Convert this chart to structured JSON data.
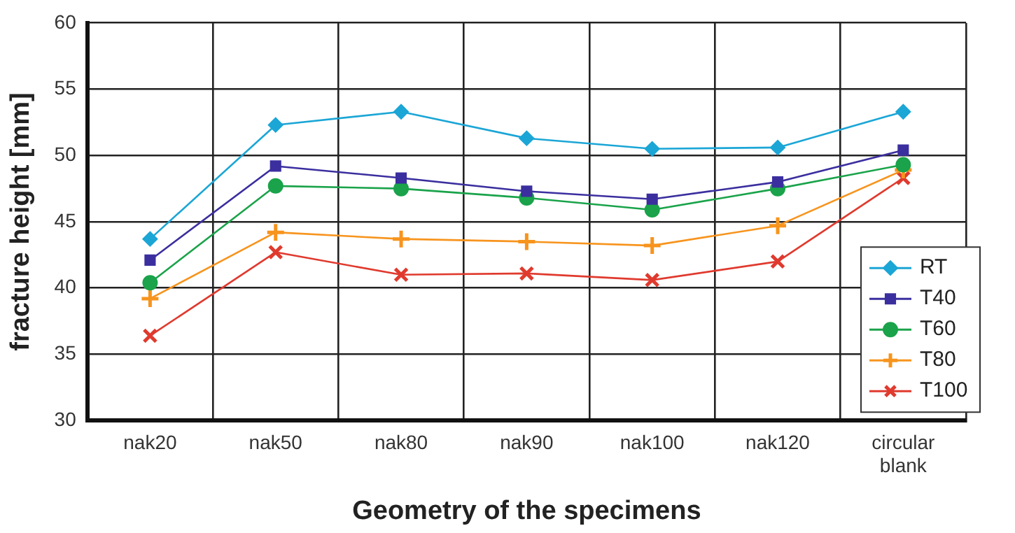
{
  "chart_data": {
    "type": "line",
    "xlabel": "Geometry of the specimens",
    "ylabel": "fracture height [mm]",
    "categories": [
      "nak20",
      "nak50",
      "nak80",
      "nak90",
      "nak100",
      "nak120",
      "circular\nblank"
    ],
    "series": [
      {
        "name": "RT",
        "color": "#1ba6d6",
        "marker": "diamond",
        "values": [
          43.7,
          52.3,
          53.3,
          51.3,
          50.5,
          50.6,
          53.3
        ]
      },
      {
        "name": "T40",
        "color": "#3b2f9f",
        "marker": "square",
        "values": [
          42.1,
          49.2,
          48.3,
          47.3,
          46.7,
          48.0,
          50.4
        ]
      },
      {
        "name": "T60",
        "color": "#1aa34a",
        "marker": "circle",
        "values": [
          40.4,
          47.7,
          47.5,
          46.8,
          45.9,
          47.5,
          49.3
        ]
      },
      {
        "name": "T80",
        "color": "#f7941d",
        "marker": "cross",
        "values": [
          39.2,
          44.2,
          43.7,
          43.5,
          43.2,
          44.7,
          48.9
        ]
      },
      {
        "name": "T100",
        "color": "#e03a2e",
        "marker": "cross",
        "values": [
          36.4,
          42.7,
          41.0,
          41.1,
          40.6,
          42.0,
          48.3
        ]
      }
    ],
    "ylim": [
      30,
      60
    ],
    "yticks": [
      30,
      35,
      40,
      45,
      50,
      55,
      60
    ],
    "grid": true,
    "legend": "bottom right"
  }
}
